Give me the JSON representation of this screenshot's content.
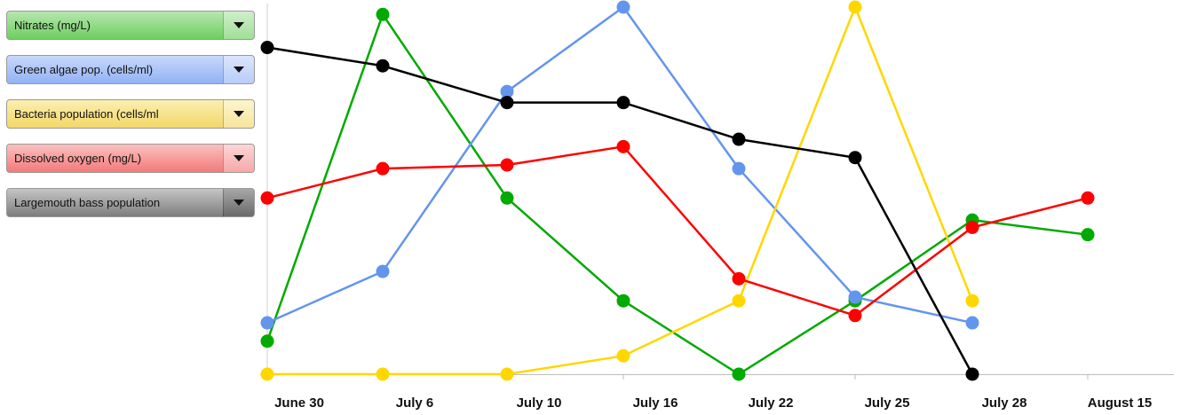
{
  "legend": {
    "items": [
      {
        "label": "Nitrates (mg/L)",
        "style": "sel-green"
      },
      {
        "label": "Green algae pop. (cells/ml)",
        "style": "sel-blue"
      },
      {
        "label": "Bacteria population (cells/ml",
        "style": "sel-yellow"
      },
      {
        "label": "Dissolved oxygen (mg/L)",
        "style": "sel-red"
      },
      {
        "label": "Largemouth bass population",
        "style": "sel-black"
      }
    ]
  },
  "chart_data": {
    "type": "line",
    "categories": [
      "June 30",
      "July 6",
      "July 10",
      "July 16",
      "July 22",
      "July 25",
      "July 28",
      "August 15"
    ],
    "ylim": [
      0,
      100
    ],
    "grid": false,
    "series": [
      {
        "name": "Nitrates (mg/L)",
        "color": "#00aa00",
        "values": [
          9,
          98,
          48,
          20,
          0,
          20,
          42,
          38
        ]
      },
      {
        "name": "Green algae pop. (cells/ml)",
        "color": "#6495ed",
        "values": [
          14,
          28,
          77,
          100,
          56,
          21,
          14,
          null
        ]
      },
      {
        "name": "Bacteria population (cells/ml",
        "color": "#ffd700",
        "values": [
          0,
          0,
          0,
          5,
          20,
          100,
          20,
          null
        ]
      },
      {
        "name": "Dissolved oxygen (mg/L)",
        "color": "#ff0000",
        "values": [
          48,
          56,
          57,
          62,
          26,
          16,
          40,
          48
        ]
      },
      {
        "name": "Largemouth bass population",
        "color": "#000000",
        "values": [
          89,
          84,
          74,
          74,
          64,
          59,
          0,
          null
        ]
      }
    ]
  }
}
